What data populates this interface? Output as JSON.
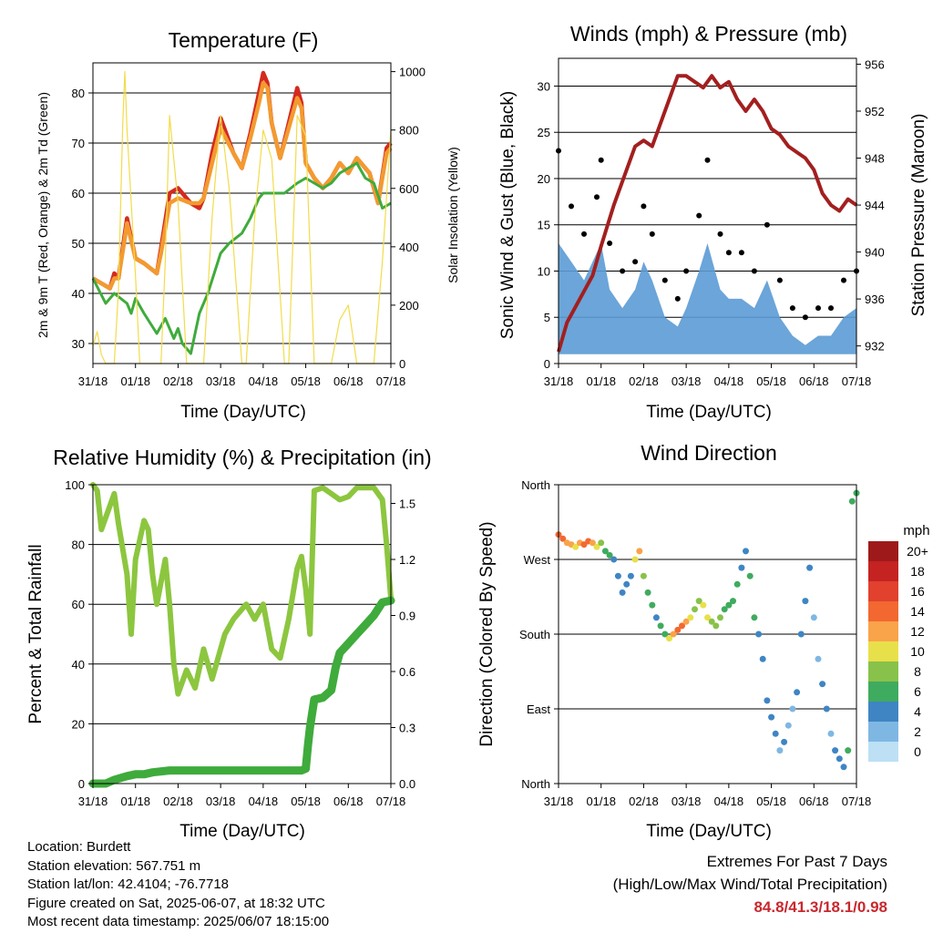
{
  "chart_data": [
    {
      "id": "temperature",
      "type": "line",
      "title": "Temperature (F)",
      "xlabel": "Time (Day/UTC)",
      "ylabel": "2m & 9m T (Red, Orange) & 2m Td (Green)",
      "ylabel_right": "Solar Insolation (Yellow)",
      "x_ticks": [
        "31/18",
        "01/18",
        "02/18",
        "03/18",
        "04/18",
        "05/18",
        "06/18",
        "07/18"
      ],
      "ylim": [
        26,
        86
      ],
      "y_ticks": [
        30,
        40,
        50,
        60,
        70,
        80
      ],
      "ylim_right": [
        0,
        1030
      ],
      "y_ticks_right": [
        0,
        200,
        400,
        600,
        800,
        1000
      ],
      "grid": true,
      "series": [
        {
          "color": "#d42a20",
          "x": [
            0,
            0.2,
            0.4,
            0.5,
            0.6,
            0.75,
            0.8,
            1.0,
            1.2,
            1.5,
            1.6,
            1.8,
            2.0,
            2.3,
            2.5,
            2.6,
            2.8,
            3.0,
            3.3,
            3.5,
            3.7,
            3.9,
            4.0,
            4.1,
            4.2,
            4.4,
            4.6,
            4.8,
            4.9,
            5.0,
            5.2,
            5.4,
            5.6,
            5.8,
            6.0,
            6.2,
            6.5,
            6.7,
            6.9,
            7.0
          ],
          "y": [
            43,
            42,
            41,
            44,
            43,
            52,
            55,
            47,
            46,
            44,
            49,
            60,
            61,
            58,
            57,
            59,
            68,
            75,
            68,
            65,
            72,
            80,
            84,
            82,
            74,
            67,
            74,
            81,
            78,
            66,
            63,
            61,
            63,
            66,
            64,
            67,
            64,
            58,
            69,
            70
          ]
        },
        {
          "color": "#f39a30",
          "x": [
            0,
            0.2,
            0.4,
            0.5,
            0.6,
            0.75,
            0.8,
            1.0,
            1.2,
            1.5,
            1.6,
            1.8,
            2.0,
            2.3,
            2.5,
            2.6,
            2.8,
            3.0,
            3.3,
            3.5,
            3.7,
            3.9,
            4.0,
            4.1,
            4.2,
            4.4,
            4.6,
            4.8,
            4.9,
            5.0,
            5.2,
            5.4,
            5.6,
            5.8,
            6.0,
            6.2,
            6.5,
            6.7,
            6.9,
            7.0
          ],
          "y": [
            43,
            42,
            41,
            43,
            43,
            51,
            54,
            47,
            46,
            44,
            48,
            58,
            59,
            58,
            58,
            59,
            66,
            73,
            68,
            65,
            71,
            78,
            82,
            81,
            74,
            67,
            73,
            79,
            77,
            66,
            63,
            61,
            63,
            66,
            64,
            67,
            64,
            58,
            68,
            69
          ]
        },
        {
          "color": "#3fab3c",
          "x": [
            0,
            0.3,
            0.5,
            0.8,
            0.9,
            1.0,
            1.2,
            1.5,
            1.7,
            1.9,
            2.0,
            2.1,
            2.3,
            2.5,
            2.7,
            3.0,
            3.2,
            3.5,
            3.7,
            3.9,
            4.0,
            4.3,
            4.5,
            4.8,
            5.0,
            5.2,
            5.4,
            5.6,
            5.8,
            6.0,
            6.2,
            6.4,
            6.6,
            6.8,
            7.0
          ],
          "y": [
            43,
            38,
            40,
            38,
            36,
            39,
            36,
            32,
            35,
            31,
            33,
            30,
            28,
            36,
            40,
            48,
            50,
            52,
            55,
            59,
            60,
            60,
            60,
            62,
            63,
            62,
            61,
            62,
            64,
            65,
            66,
            63,
            62,
            57,
            58
          ]
        },
        {
          "color": "#f2dc4a",
          "x": [
            0,
            0.1,
            0.2,
            0.3,
            0.5,
            0.6,
            0.7,
            0.75,
            0.8,
            1.0,
            1.1,
            1.3,
            1.6,
            1.7,
            1.8,
            2.0,
            2.2,
            2.5,
            2.6,
            2.8,
            3.0,
            3.2,
            3.5,
            3.6,
            3.8,
            4.0,
            4.2,
            4.5,
            4.6,
            4.8,
            5.0,
            5.2,
            5.5,
            5.6,
            5.8,
            6.0,
            6.2,
            6.4,
            6.6,
            6.8,
            7.0
          ],
          "y": [
            60,
            110,
            30,
            0,
            0,
            250,
            820,
            1000,
            800,
            300,
            0,
            0,
            0,
            350,
            850,
            550,
            0,
            0,
            0,
            500,
            850,
            600,
            0,
            0,
            500,
            800,
            700,
            0,
            0,
            850,
            780,
            0,
            0,
            0,
            150,
            200,
            0,
            0,
            0,
            350,
            800
          ]
        }
      ]
    },
    {
      "id": "winds-pressure",
      "type": "scatter",
      "title": "Winds (mph) & Pressure (mb)",
      "xlabel": "Time (Day/UTC)",
      "ylabel": "Sonic Wind & Gust (Blue, Black)",
      "ylabel_right": "Station Pressure (Maroon)",
      "x_ticks": [
        "31/18",
        "01/18",
        "02/18",
        "03/18",
        "04/18",
        "05/18",
        "06/18",
        "07/18"
      ],
      "ylim": [
        0,
        33
      ],
      "y_ticks": [
        0,
        5,
        10,
        15,
        20,
        25,
        30
      ],
      "ylim_right": [
        930.5,
        956.5
      ],
      "y_ticks_right": [
        932,
        936,
        940,
        944,
        948,
        952,
        956
      ],
      "grid": true,
      "series": [
        {
          "color": "#5b9bd5",
          "kind": "wind",
          "x": [
            0,
            0.3,
            0.6,
            0.9,
            1.0,
            1.2,
            1.5,
            1.8,
            2.0,
            2.2,
            2.5,
            2.8,
            3.0,
            3.3,
            3.5,
            3.8,
            4.0,
            4.3,
            4.6,
            4.9,
            5.2,
            5.5,
            5.8,
            6.1,
            6.4,
            6.7,
            7.0
          ],
          "y": [
            13,
            11,
            9,
            12,
            13,
            8,
            6,
            8,
            11,
            9,
            5,
            4,
            6,
            10,
            13,
            8,
            7,
            7,
            6,
            9,
            5,
            3,
            2,
            3,
            3,
            5,
            6
          ]
        },
        {
          "color": "#000000",
          "kind": "gust",
          "x": [
            0,
            0.3,
            0.6,
            0.9,
            1.0,
            1.2,
            1.5,
            1.8,
            2.0,
            2.2,
            2.5,
            2.8,
            3.0,
            3.3,
            3.5,
            3.8,
            4.0,
            4.3,
            4.6,
            4.9,
            5.2,
            5.5,
            5.8,
            6.1,
            6.4,
            6.7,
            7.0
          ],
          "y": [
            23,
            17,
            14,
            18,
            22,
            13,
            10,
            11,
            17,
            14,
            9,
            7,
            10,
            16,
            22,
            14,
            12,
            12,
            10,
            15,
            9,
            6,
            5,
            6,
            6,
            9,
            10
          ]
        },
        {
          "color": "#a31f1f",
          "kind": "pressure",
          "x": [
            0,
            0.2,
            0.5,
            0.8,
            1.0,
            1.3,
            1.6,
            1.8,
            2.0,
            2.2,
            2.4,
            2.6,
            2.8,
            3.0,
            3.2,
            3.4,
            3.6,
            3.8,
            4.0,
            4.2,
            4.4,
            4.6,
            4.8,
            5.0,
            5.2,
            5.4,
            5.6,
            5.8,
            6.0,
            6.2,
            6.4,
            6.6,
            6.8,
            7.0
          ],
          "y": [
            931.5,
            934,
            936,
            938,
            940.5,
            944,
            947,
            949,
            949.5,
            949,
            951,
            953,
            955,
            955,
            954.5,
            954,
            955,
            954,
            954.5,
            953,
            952,
            953,
            952,
            950.5,
            950,
            949,
            948.5,
            948,
            947,
            945,
            944,
            943.5,
            944.5,
            944
          ]
        }
      ]
    },
    {
      "id": "rh-precip",
      "type": "line",
      "title": "Relative Humidity (%) & Precipitation (in)",
      "xlabel": "Time (Day/UTC)",
      "ylabel": "Percent & Total Rainfall",
      "x_ticks": [
        "31/18",
        "01/18",
        "02/18",
        "03/18",
        "04/18",
        "05/18",
        "06/18",
        "07/18"
      ],
      "ylim": [
        0,
        100
      ],
      "y_ticks": [
        0,
        20,
        40,
        60,
        80,
        100
      ],
      "ylim_right": [
        0,
        1.6
      ],
      "y_ticks_right": [
        "0.0",
        "0.3",
        "0.6",
        "0.9",
        "1.2",
        "1.5"
      ],
      "grid": true,
      "series": [
        {
          "color": "#8cc63f",
          "x": [
            0,
            0.1,
            0.2,
            0.4,
            0.5,
            0.6,
            0.8,
            0.9,
            1.0,
            1.2,
            1.3,
            1.4,
            1.5,
            1.7,
            1.8,
            1.9,
            2.0,
            2.2,
            2.4,
            2.6,
            2.8,
            3.0,
            3.1,
            3.3,
            3.6,
            3.8,
            4.0,
            4.2,
            4.4,
            4.6,
            4.8,
            4.9,
            5.0,
            5.1,
            5.2,
            5.4,
            5.6,
            5.8,
            6.0,
            6.2,
            6.4,
            6.6,
            6.8,
            6.9,
            7.0
          ],
          "y": [
            100,
            98,
            85,
            93,
            97,
            87,
            70,
            50,
            75,
            88,
            85,
            70,
            60,
            75,
            60,
            40,
            30,
            38,
            32,
            45,
            35,
            45,
            50,
            55,
            60,
            55,
            60,
            45,
            42,
            55,
            72,
            76,
            65,
            50,
            98,
            99,
            97,
            95,
            96,
            99,
            99,
            99,
            95,
            80,
            62
          ]
        },
        {
          "color": "#3fab3c",
          "x": [
            0,
            0.1,
            0.3,
            0.4,
            0.5,
            0.8,
            1.0,
            1.2,
            1.4,
            1.8,
            2.0,
            2.5,
            3.0,
            3.5,
            4.0,
            4.5,
            4.9,
            5.0,
            5.05,
            5.1,
            5.2,
            5.4,
            5.6,
            5.7,
            5.8,
            6.0,
            6.2,
            6.4,
            6.6,
            6.8,
            7.0
          ],
          "y": [
            0,
            0,
            0,
            0.01,
            0.02,
            0.04,
            0.05,
            0.05,
            0.06,
            0.07,
            0.07,
            0.07,
            0.07,
            0.07,
            0.07,
            0.07,
            0.07,
            0.08,
            0.2,
            0.3,
            0.45,
            0.46,
            0.5,
            0.62,
            0.7,
            0.75,
            0.8,
            0.85,
            0.9,
            0.97,
            0.98
          ]
        }
      ]
    },
    {
      "id": "wind-direction",
      "type": "scatter",
      "title": "Wind Direction",
      "xlabel": "Time (Day/UTC)",
      "ylabel": "Direction (Colored By Speed)",
      "x_ticks": [
        "31/18",
        "01/18",
        "02/18",
        "03/18",
        "04/18",
        "05/18",
        "06/18",
        "07/18"
      ],
      "ylim": [
        0,
        360
      ],
      "y_ticks": [
        "North",
        "East",
        "South",
        "West",
        "North"
      ],
      "grid": true,
      "colorbar": {
        "title": "mph",
        "labels": [
          "20+",
          "18",
          "16",
          "14",
          "12",
          "10",
          "8",
          "6",
          "4",
          "2",
          "0"
        ],
        "colors": [
          "#9e1a1a",
          "#c52222",
          "#e1412d",
          "#f26830",
          "#f9a34a",
          "#e8e04a",
          "#88c24a",
          "#3fab5e",
          "#3f85c4",
          "#7fb7e3",
          "#bde0f5"
        ]
      },
      "series": [
        {
          "x": [
            0,
            0.1,
            0.2,
            0.3,
            0.4,
            0.5,
            0.6,
            0.7,
            0.8,
            0.9,
            1.0,
            1.1,
            1.2,
            1.3,
            1.4,
            1.5,
            1.6,
            1.7,
            1.8,
            1.9,
            2.0,
            2.1,
            2.2,
            2.3,
            2.4,
            2.5,
            2.6,
            2.7,
            2.8,
            2.9,
            3.0,
            3.1,
            3.2,
            3.3,
            3.4,
            3.5,
            3.6,
            3.7,
            3.8,
            3.9,
            4.0,
            4.1,
            4.2,
            4.3,
            4.4,
            4.5,
            4.6,
            4.7,
            4.8,
            4.9,
            5.0,
            5.1,
            5.2,
            5.3,
            5.4,
            5.5,
            5.6,
            5.7,
            5.8,
            5.9,
            6.0,
            6.1,
            6.2,
            6.3,
            6.4,
            6.5,
            6.6,
            6.7,
            6.8,
            6.9,
            7.0
          ],
          "y": [
            300,
            295,
            290,
            288,
            285,
            290,
            288,
            292,
            290,
            285,
            290,
            280,
            275,
            270,
            250,
            230,
            240,
            250,
            270,
            280,
            250,
            230,
            215,
            200,
            190,
            180,
            175,
            180,
            185,
            190,
            195,
            200,
            210,
            220,
            215,
            200,
            195,
            190,
            200,
            210,
            215,
            220,
            240,
            260,
            280,
            250,
            200,
            180,
            150,
            100,
            80,
            60,
            40,
            50,
            70,
            90,
            110,
            180,
            220,
            260,
            200,
            150,
            120,
            90,
            60,
            40,
            30,
            20,
            40,
            340,
            350
          ],
          "speed": [
            14,
            14,
            12,
            12,
            10,
            12,
            14,
            13,
            12,
            10,
            8,
            6,
            6,
            4,
            4,
            3,
            3,
            4,
            10,
            12,
            8,
            6,
            5,
            4,
            6,
            5,
            10,
            12,
            14,
            14,
            12,
            10,
            8,
            8,
            10,
            10,
            8,
            8,
            8,
            6,
            6,
            6,
            5,
            4,
            4,
            6,
            6,
            4,
            3,
            4,
            3,
            3,
            2,
            4,
            2,
            2,
            3,
            4,
            4,
            3,
            2,
            2,
            3,
            3,
            2,
            4,
            4,
            4,
            6,
            6,
            6
          ]
        }
      ]
    }
  ],
  "meta": {
    "location": "Location: Burdett",
    "elevation": "Station elevation: 567.751 m",
    "latlon": "Station lat/lon: 42.4104; -76.7718",
    "created": "Figure created on Sat, 2025-06-07, at 18:32 UTC",
    "recent": "Most recent data timestamp: 2025/06/07 18:15:00"
  },
  "extremes": {
    "title": "Extremes For Past 7 Days",
    "subtitle": "(High/Low/Max Wind/Total Precipitation)",
    "values": "84.8/41.3/18.1/0.98"
  }
}
